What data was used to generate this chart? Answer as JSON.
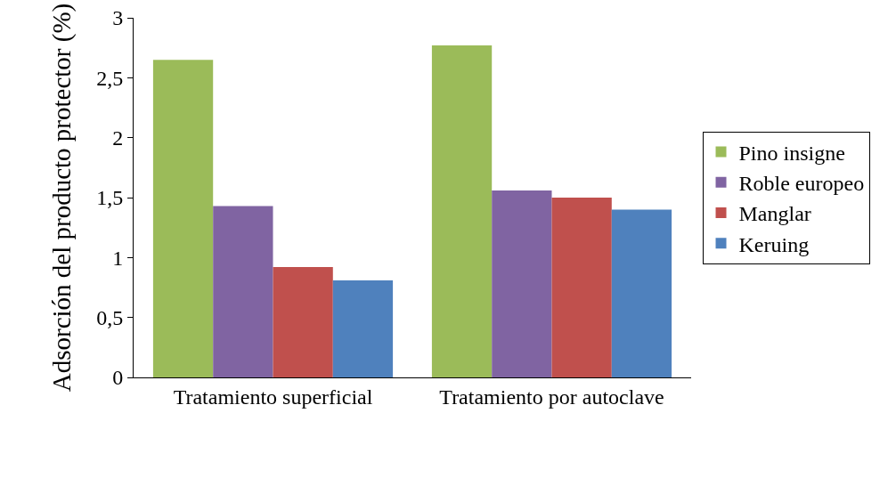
{
  "chart_data": {
    "type": "bar",
    "ylabel": "Adsorción del producto protector (%)",
    "categories": [
      "Tratamiento superficial",
      "Tratamiento por autoclave"
    ],
    "series": [
      {
        "name": "Pino insigne",
        "color": "#9bbb59",
        "values": [
          2.65,
          2.77
        ]
      },
      {
        "name": "Roble europeo",
        "color": "#8064a2",
        "values": [
          1.43,
          1.56
        ]
      },
      {
        "name": "Manglar",
        "color": "#c0504d",
        "values": [
          0.92,
          1.5
        ]
      },
      {
        "name": "Keruing",
        "color": "#4f81bd",
        "values": [
          0.81,
          1.4
        ]
      }
    ],
    "ylim": [
      0,
      3
    ],
    "yticks": [
      0,
      {
        "value": 0.5,
        "label": "0,5"
      },
      1,
      {
        "value": 1.5,
        "label": "1,5"
      },
      2,
      {
        "value": 2.5,
        "label": "2,5"
      },
      3
    ],
    "grid": false,
    "legend": "right"
  }
}
